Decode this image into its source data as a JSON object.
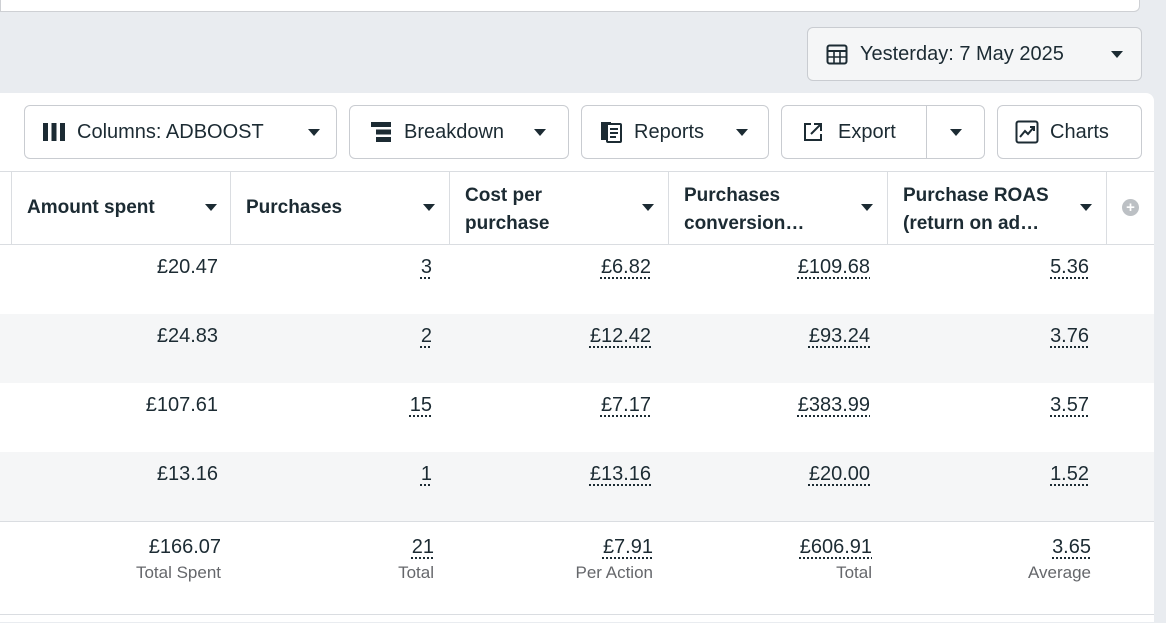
{
  "date_range": {
    "label": "Yesterday: 7 May 2025"
  },
  "toolbar": {
    "columns_label": "Columns: ADBOOST",
    "breakdown_label": "Breakdown",
    "reports_label": "Reports",
    "export_label": "Export",
    "charts_label": "Charts"
  },
  "table": {
    "headers": [
      "Amount spent",
      "Purchases",
      "Cost per purchase",
      "Purchases conversion…",
      "Purchase ROAS (return on ad…"
    ],
    "rows": [
      [
        "£20.47",
        "3",
        "£6.82",
        "£109.68",
        "5.36"
      ],
      [
        "£24.83",
        "2",
        "£12.42",
        "£93.24",
        "3.76"
      ],
      [
        "£107.61",
        "15",
        "£7.17",
        "£383.99",
        "3.57"
      ],
      [
        "£13.16",
        "1",
        "£13.16",
        "£20.00",
        "1.52"
      ]
    ],
    "totals": {
      "values": [
        "£166.07",
        "21",
        "£7.91",
        "£606.91",
        "3.65"
      ],
      "labels": [
        "Total Spent",
        "Total",
        "Per Action",
        "Total",
        "Average"
      ]
    }
  },
  "icons": [
    "calendar-icon",
    "columns-icon",
    "breakdown-icon",
    "reports-icon",
    "export-icon",
    "charts-icon",
    "add-column-icon"
  ]
}
